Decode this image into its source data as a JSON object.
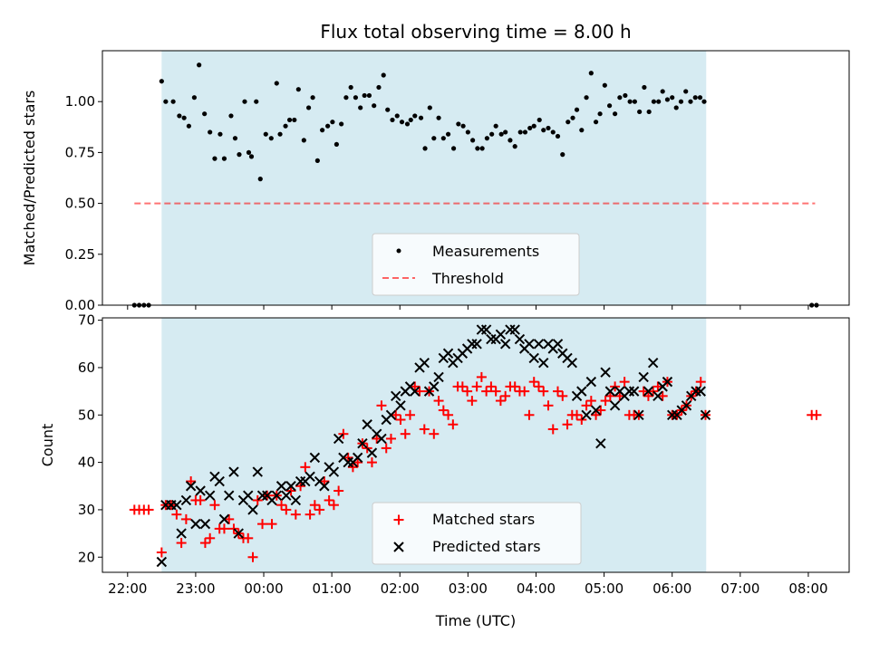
{
  "colors": {
    "background": "#ffffff",
    "observing_window": "#add8e6",
    "measurement": "#000000",
    "threshold": "#ff0000",
    "matched": "#ff0000",
    "predicted": "#000000"
  },
  "x_axis": {
    "label": "Time (UTC)",
    "ticks": [
      "22:00",
      "23:00",
      "00:00",
      "01:00",
      "02:00",
      "03:00",
      "04:00",
      "05:00",
      "06:00",
      "07:00",
      "08:00"
    ]
  },
  "chart_data": [
    {
      "type": "scatter",
      "title": "Flux total observing time = 8.00 h",
      "xlabel": "",
      "ylabel": "Matched/Predicted stars",
      "xlim": [
        -0.37,
        10.6
      ],
      "ylim": [
        0,
        1.25
      ],
      "yticks": [
        "0.00",
        "0.25",
        "0.50",
        "0.75",
        "1.00"
      ],
      "grid": false,
      "observing_window": [
        0.5,
        8.5
      ],
      "legend": {
        "position": "bottom-center",
        "entries": [
          "Measurements",
          "Threshold"
        ]
      },
      "threshold": {
        "value": 0.5,
        "x_range": [
          0.1,
          10.1
        ]
      },
      "series": [
        {
          "name": "Measurements",
          "marker": "dot",
          "x": [
            0.1,
            0.17,
            0.24,
            0.31,
            0.5,
            0.56,
            0.67,
            0.76,
            0.83,
            0.9,
            0.98,
            1.05,
            1.13,
            1.21,
            1.28,
            1.36,
            1.42,
            1.52,
            1.58,
            1.64,
            1.72,
            1.78,
            1.82,
            1.89,
            1.95,
            2.03,
            2.11,
            2.19,
            2.24,
            2.32,
            2.38,
            2.45,
            2.51,
            2.59,
            2.66,
            2.72,
            2.79,
            2.86,
            2.94,
            3.01,
            3.07,
            3.14,
            3.21,
            3.28,
            3.35,
            3.42,
            3.48,
            3.55,
            3.62,
            3.69,
            3.76,
            3.82,
            3.89,
            3.96,
            4.03,
            4.11,
            4.16,
            4.22,
            4.31,
            4.37,
            4.44,
            4.5,
            4.57,
            4.64,
            4.71,
            4.79,
            4.86,
            4.93,
            5.0,
            5.07,
            5.14,
            5.21,
            5.28,
            5.35,
            5.41,
            5.49,
            5.55,
            5.62,
            5.69,
            5.77,
            5.84,
            5.91,
            5.97,
            6.05,
            6.11,
            6.18,
            6.25,
            6.32,
            6.39,
            6.47,
            6.54,
            6.6,
            6.67,
            6.74,
            6.81,
            6.88,
            6.94,
            7.01,
            7.08,
            7.16,
            7.23,
            7.31,
            7.38,
            7.45,
            7.52,
            7.59,
            7.66,
            7.73,
            7.8,
            7.86,
            7.93,
            8.0,
            8.06,
            8.13,
            8.2,
            8.27,
            8.34,
            8.41,
            8.47,
            10.05,
            10.12
          ],
          "y": [
            0.0,
            0.0,
            0.0,
            0.0,
            1.1,
            1.0,
            1.0,
            0.93,
            0.92,
            0.88,
            1.02,
            1.18,
            0.94,
            0.85,
            0.72,
            0.84,
            0.72,
            0.93,
            0.82,
            0.74,
            1.0,
            0.75,
            0.73,
            1.0,
            0.62,
            0.84,
            0.82,
            1.09,
            0.84,
            0.88,
            0.91,
            0.91,
            1.06,
            0.81,
            0.97,
            1.02,
            0.71,
            0.86,
            0.88,
            0.9,
            0.79,
            0.89,
            1.02,
            1.07,
            1.02,
            0.97,
            1.03,
            1.03,
            0.98,
            1.07,
            1.13,
            0.96,
            0.91,
            0.93,
            0.9,
            0.89,
            0.91,
            0.93,
            0.92,
            0.77,
            0.97,
            0.82,
            0.92,
            0.82,
            0.84,
            0.77,
            0.89,
            0.88,
            0.85,
            0.81,
            0.77,
            0.77,
            0.82,
            0.84,
            0.88,
            0.84,
            0.85,
            0.81,
            0.78,
            0.85,
            0.85,
            0.87,
            0.88,
            0.91,
            0.86,
            0.87,
            0.85,
            0.83,
            0.74,
            0.9,
            0.92,
            0.96,
            0.86,
            1.02,
            1.14,
            0.9,
            0.94,
            1.08,
            0.98,
            0.94,
            1.02,
            1.03,
            1.0,
            1.0,
            0.95,
            1.07,
            0.95,
            1.0,
            1.0,
            1.05,
            1.01,
            1.02,
            0.97,
            1.0,
            1.05,
            1.0,
            1.02,
            1.02,
            1.0,
            0.0,
            0.0
          ]
        }
      ]
    },
    {
      "type": "scatter",
      "title": "",
      "xlabel": "Time (UTC)",
      "ylabel": "Count",
      "xlim": [
        -0.37,
        10.6
      ],
      "ylim": [
        16.8,
        70.5
      ],
      "yticks": [
        "20",
        "30",
        "40",
        "50",
        "60",
        "70"
      ],
      "grid": false,
      "observing_window": [
        0.5,
        8.5
      ],
      "legend": {
        "position": "bottom-center",
        "entries": [
          "Matched stars",
          "Predicted stars"
        ]
      },
      "series": [
        {
          "name": "Matched stars",
          "marker": "plus",
          "x": [
            0.1,
            0.17,
            0.24,
            0.31,
            0.5,
            0.56,
            0.64,
            0.72,
            0.79,
            0.86,
            0.93,
            1.0,
            1.07,
            1.14,
            1.21,
            1.28,
            1.35,
            1.42,
            1.49,
            1.56,
            1.63,
            1.7,
            1.77,
            1.84,
            1.91,
            1.98,
            2.05,
            2.12,
            2.19,
            2.26,
            2.33,
            2.4,
            2.47,
            2.54,
            2.61,
            2.68,
            2.75,
            2.82,
            2.89,
            2.96,
            3.03,
            3.1,
            3.17,
            3.24,
            3.31,
            3.38,
            3.45,
            3.52,
            3.59,
            3.66,
            3.73,
            3.8,
            3.87,
            3.94,
            4.01,
            4.08,
            4.15,
            4.22,
            4.29,
            4.36,
            4.43,
            4.5,
            4.57,
            4.64,
            4.71,
            4.78,
            4.85,
            4.92,
            4.99,
            5.06,
            5.13,
            5.2,
            5.27,
            5.34,
            5.41,
            5.48,
            5.55,
            5.62,
            5.69,
            5.76,
            5.83,
            5.9,
            5.97,
            6.04,
            6.11,
            6.18,
            6.25,
            6.32,
            6.39,
            6.46,
            6.53,
            6.6,
            6.67,
            6.74,
            6.81,
            6.88,
            6.95,
            7.02,
            7.09,
            7.16,
            7.23,
            7.3,
            7.37,
            7.44,
            7.51,
            7.58,
            7.65,
            7.72,
            7.79,
            7.86,
            7.93,
            8.0,
            8.07,
            8.14,
            8.21,
            8.28,
            8.35,
            8.42,
            8.49,
            10.05,
            10.12
          ],
          "y": [
            30,
            30,
            30,
            30,
            21,
            31,
            31,
            29,
            23,
            28,
            36,
            32,
            32,
            23,
            24,
            31,
            26,
            26,
            28,
            26,
            25,
            24,
            24,
            20,
            32,
            27,
            33,
            27,
            33,
            31,
            30,
            34,
            29,
            35,
            39,
            29,
            31,
            30,
            36,
            32,
            31,
            34,
            46,
            41,
            39,
            40,
            44,
            43,
            40,
            45,
            52,
            43,
            45,
            50,
            49,
            46,
            50,
            56,
            55,
            47,
            55,
            46,
            53,
            51,
            50,
            48,
            56,
            56,
            55,
            53,
            56,
            58,
            55,
            56,
            55,
            53,
            54,
            56,
            56,
            55,
            55,
            50,
            57,
            56,
            55,
            52,
            47,
            55,
            54,
            48,
            50,
            50,
            49,
            52,
            53,
            50,
            51,
            53,
            54,
            56,
            54,
            57,
            50,
            50,
            50,
            55,
            54,
            55,
            56,
            54,
            57,
            50,
            50,
            51,
            52,
            54,
            55,
            57,
            50,
            50,
            50
          ]
        },
        {
          "name": "Predicted stars",
          "marker": "x",
          "x": [
            0.5,
            0.56,
            0.64,
            0.72,
            0.79,
            0.86,
            0.93,
            1.0,
            1.07,
            1.14,
            1.21,
            1.28,
            1.35,
            1.42,
            1.49,
            1.56,
            1.63,
            1.7,
            1.77,
            1.84,
            1.91,
            1.98,
            2.05,
            2.12,
            2.19,
            2.26,
            2.33,
            2.4,
            2.47,
            2.54,
            2.61,
            2.68,
            2.75,
            2.82,
            2.89,
            2.96,
            3.03,
            3.1,
            3.17,
            3.24,
            3.31,
            3.38,
            3.45,
            3.52,
            3.59,
            3.66,
            3.73,
            3.8,
            3.87,
            3.94,
            4.01,
            4.08,
            4.15,
            4.22,
            4.29,
            4.36,
            4.43,
            4.5,
            4.57,
            4.64,
            4.71,
            4.78,
            4.85,
            4.92,
            4.99,
            5.06,
            5.13,
            5.2,
            5.27,
            5.34,
            5.41,
            5.48,
            5.55,
            5.62,
            5.69,
            5.76,
            5.83,
            5.9,
            5.97,
            6.04,
            6.11,
            6.18,
            6.25,
            6.32,
            6.39,
            6.46,
            6.53,
            6.6,
            6.67,
            6.74,
            6.81,
            6.88,
            6.95,
            7.02,
            7.09,
            7.16,
            7.23,
            7.3,
            7.37,
            7.44,
            7.51,
            7.58,
            7.65,
            7.72,
            7.79,
            7.86,
            7.93,
            8.0,
            8.07,
            8.14,
            8.21,
            8.28,
            8.35,
            8.42,
            8.49
          ],
          "y": [
            19,
            31,
            31,
            31,
            25,
            32,
            35,
            27,
            34,
            27,
            33,
            37,
            36,
            28,
            33,
            38,
            25,
            32,
            33,
            30,
            38,
            33,
            33,
            32,
            33,
            35,
            33,
            35,
            32,
            36,
            36,
            37,
            41,
            36,
            35,
            39,
            38,
            45,
            41,
            40,
            40,
            41,
            44,
            48,
            42,
            46,
            45,
            49,
            50,
            54,
            52,
            55,
            56,
            55,
            60,
            61,
            55,
            56,
            58,
            62,
            63,
            61,
            62,
            63,
            64,
            65,
            65,
            68,
            68,
            66,
            66,
            67,
            65,
            68,
            68,
            66,
            64,
            65,
            62,
            65,
            61,
            65,
            64,
            65,
            63,
            62,
            61,
            54,
            55,
            50,
            57,
            51,
            44,
            59,
            55,
            52,
            55,
            54,
            55,
            55,
            50,
            58,
            55,
            61,
            54,
            56,
            57,
            50,
            50,
            51,
            52,
            54,
            55,
            55,
            50
          ]
        }
      ]
    }
  ]
}
